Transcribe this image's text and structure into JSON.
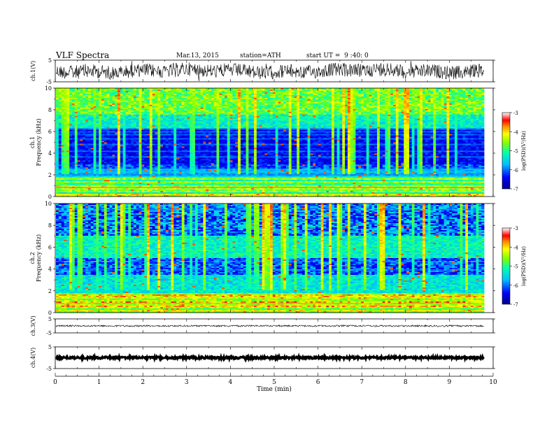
{
  "header": {
    "title": "VLF Spectra",
    "date": "Mar.13, 2015",
    "station": "station=ATH",
    "start": "start UT =  9 :40: 0"
  },
  "chart_data": [
    {
      "type": "line",
      "name": "ch1-waveform",
      "ylabel": "ch.1(V)",
      "ylim": [
        -5,
        5
      ],
      "yticks": [
        "5",
        "-5"
      ],
      "xlim": [
        0,
        10
      ]
    },
    {
      "type": "heatmap",
      "name": "ch1-spectrogram",
      "ylabel_line1": "ch.1",
      "ylabel_line2": "Frequency (kHz)",
      "ylim": [
        0,
        10
      ],
      "yticks": [
        "0",
        "2",
        "4",
        "6",
        "8",
        "10"
      ],
      "xlim": [
        0,
        9.8
      ],
      "colorbar": {
        "label": "log(PSD)(V²/Hz)",
        "ticks": [
          "-3",
          "-4",
          "-5",
          "-6",
          "-7"
        ],
        "range": [
          -7,
          -3
        ]
      }
    },
    {
      "type": "heatmap",
      "name": "ch2-spectrogram",
      "ylabel_line1": "ch.2",
      "ylabel_line2": "Frequency (kHz)",
      "ylim": [
        0,
        10
      ],
      "yticks": [
        "0",
        "2",
        "4",
        "6",
        "8",
        "10"
      ],
      "xlim": [
        0,
        9.8
      ],
      "colorbar": {
        "label": "log(PSD)(V²/Hz)",
        "ticks": [
          "-3",
          "-4",
          "-5",
          "-6",
          "-7"
        ],
        "range": [
          -7,
          -3
        ]
      }
    },
    {
      "type": "line",
      "name": "ch3-waveform",
      "ylabel": "ch.3(V)",
      "ylim": [
        -5,
        5
      ],
      "yticks": [
        "5",
        "-5"
      ],
      "xlim": [
        0,
        10
      ]
    },
    {
      "type": "line",
      "name": "ch4-waveform",
      "ylabel": "ch.4(V)",
      "ylim": [
        -5,
        5
      ],
      "yticks": [
        "5",
        "-5"
      ],
      "xlim": [
        0,
        10
      ]
    }
  ],
  "xaxis": {
    "label": "Time (min)",
    "ticks": [
      "0",
      "1",
      "2",
      "3",
      "4",
      "5",
      "6",
      "7",
      "8",
      "9",
      "10"
    ]
  }
}
